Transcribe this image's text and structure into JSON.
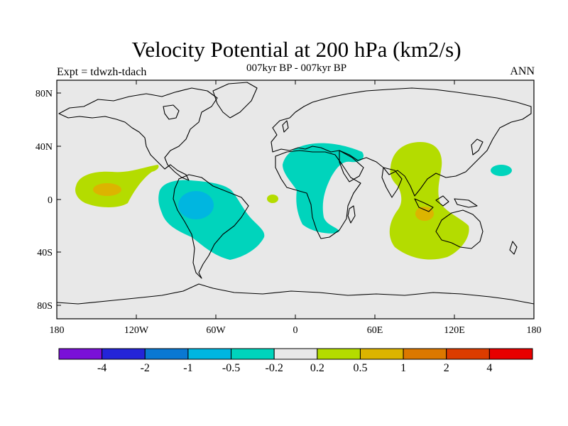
{
  "header": {
    "title": "Velocity Potential at 200 hPa (km2/s)",
    "subtitle": "007kyr BP - 007kyr BP",
    "experiment": "Expt = tdwzh-tdach",
    "season": "ANN"
  },
  "axes": {
    "lat_ticks": [
      "80N",
      "40N",
      "0",
      "40S",
      "80S"
    ],
    "lon_ticks": [
      "180",
      "120W",
      "60W",
      "0",
      "60E",
      "120E",
      "180"
    ]
  },
  "colorbar": {
    "labels": [
      "-4",
      "-2",
      "-1",
      "-0.5",
      "-0.2",
      "0.2",
      "0.5",
      "1",
      "2",
      "4"
    ],
    "colors": [
      "#7a10d8",
      "#2424d8",
      "#0a78d2",
      "#00b6e0",
      "#00d4bc",
      "#e8e8e8",
      "#b4dc00",
      "#dcb400",
      "#dc7800",
      "#dc3c00",
      "#e80000"
    ]
  },
  "colors": {
    "land_background": "#e8e8e8",
    "neg_weak": "#00d4bc",
    "neg_mid": "#00b6e0",
    "pos_weak": "#b4dc00",
    "pos_mid": "#dcb400"
  }
}
